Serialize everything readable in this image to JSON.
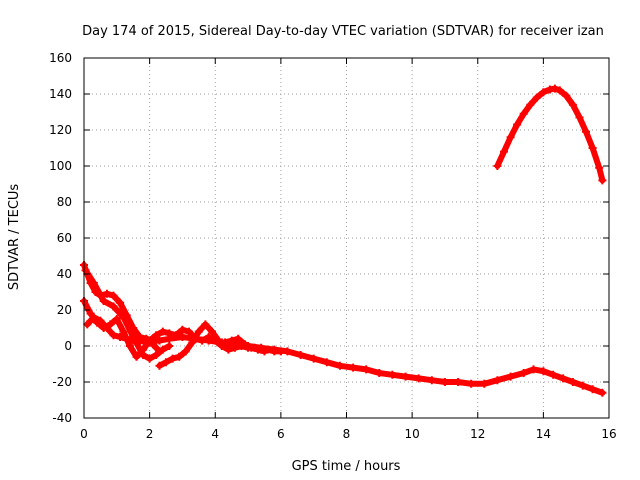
{
  "chart_data": {
    "type": "scatter",
    "title": "Day 174 of 2015, Sidereal Day-to-day VTEC variation (SDTVAR) for receiver izan",
    "xlabel": "GPS time / hours",
    "ylabel": "SDTVAR / TECUs",
    "xlim": [
      0,
      16
    ],
    "ylim": [
      -40,
      160
    ],
    "xticks": [
      0,
      2,
      4,
      6,
      8,
      10,
      12,
      14,
      16
    ],
    "yticks": [
      -40,
      -20,
      0,
      20,
      40,
      60,
      80,
      100,
      120,
      140,
      160
    ],
    "grid": true,
    "legend": "none",
    "marker": "plus",
    "series_color": "#ff0000",
    "series": [
      {
        "name": "track-high-arc",
        "x": [
          12.6,
          12.8,
          13.0,
          13.2,
          13.4,
          13.6,
          13.8,
          14.0,
          14.2,
          14.35,
          14.5,
          14.7,
          14.9,
          15.1,
          15.3,
          15.5,
          15.7,
          15.8
        ],
        "y": [
          100,
          108,
          116,
          123,
          129,
          134,
          138,
          141,
          142.5,
          143,
          142,
          139,
          134,
          127,
          119,
          110,
          99,
          92
        ]
      },
      {
        "name": "track-main-decay",
        "x": [
          0.0,
          0.1,
          0.2,
          0.35,
          0.5,
          0.7,
          0.9,
          1.1,
          1.3,
          1.5,
          1.7,
          1.9,
          2.1,
          2.3,
          2.6,
          3.0,
          3.4,
          3.8,
          4.2,
          4.6,
          5.0,
          5.4,
          5.8,
          6.2,
          6.6,
          7.0,
          7.4,
          7.8,
          8.2,
          8.6,
          9.0,
          9.4,
          9.8,
          10.2,
          10.6,
          11.0,
          11.4,
          11.8,
          12.2,
          12.6,
          13.0,
          13.4,
          13.7,
          14.0,
          14.3,
          14.6,
          14.9,
          15.2,
          15.5,
          15.8
        ],
        "y": [
          45,
          40,
          35,
          30,
          28,
          29,
          28,
          24,
          17,
          10,
          5,
          4,
          3,
          3,
          4,
          5,
          4,
          3,
          2,
          1,
          0,
          -1,
          -2,
          -3,
          -5,
          -7,
          -9,
          -11,
          -12,
          -13,
          -15,
          -16,
          -17,
          -18,
          -19,
          -20,
          -20,
          -21,
          -21,
          -19,
          -17,
          -15,
          -13,
          -14,
          -16,
          -18,
          -20,
          -22,
          -24,
          -26
        ]
      },
      {
        "name": "track-wave",
        "x": [
          0.0,
          0.2,
          0.4,
          0.6,
          0.8,
          1.0,
          1.2,
          1.4,
          1.6,
          1.8,
          2.0,
          2.2,
          2.4,
          2.6,
          2.8,
          3.0,
          3.2,
          3.4,
          3.6,
          3.8,
          4.0,
          4.2,
          4.4,
          4.6,
          4.8,
          5.0,
          5.2,
          5.4,
          5.6,
          5.8,
          6.0
        ],
        "y": [
          25,
          18,
          13,
          10,
          12,
          15,
          8,
          0,
          -6,
          -2,
          3,
          6,
          8,
          7,
          6,
          9,
          8,
          4,
          3,
          5,
          3,
          0,
          -2,
          -1,
          0,
          -1,
          -1,
          -2,
          -2,
          -3,
          -3
        ]
      },
      {
        "name": "track-dip",
        "x": [
          0.1,
          0.3,
          0.5,
          0.7,
          0.9,
          1.1,
          1.3,
          1.5,
          1.7,
          1.9,
          2.1,
          2.3
        ],
        "y": [
          12,
          16,
          14,
          10,
          6,
          5,
          4,
          3,
          3,
          2,
          1,
          -3
        ]
      },
      {
        "name": "track-branch-a",
        "x": [
          0.05,
          0.3,
          0.6,
          0.9,
          1.2,
          1.5,
          1.8,
          2.0,
          2.2,
          2.4,
          2.6
        ],
        "y": [
          42,
          35,
          25,
          22,
          16,
          5,
          -5,
          -7,
          -5,
          -2,
          0
        ]
      },
      {
        "name": "track-branch-b",
        "x": [
          2.3,
          2.5,
          2.7,
          2.9,
          3.1,
          3.3,
          3.5,
          3.7,
          3.9,
          4.1
        ],
        "y": [
          -11,
          -9,
          -7,
          -6,
          -3,
          2,
          8,
          12,
          8,
          3
        ]
      },
      {
        "name": "track-branch-c",
        "x": [
          4.3,
          4.5,
          4.7,
          4.9,
          5.1,
          5.3,
          5.5
        ],
        "y": [
          2,
          3,
          4,
          1,
          -1,
          -2,
          -3
        ]
      }
    ]
  }
}
